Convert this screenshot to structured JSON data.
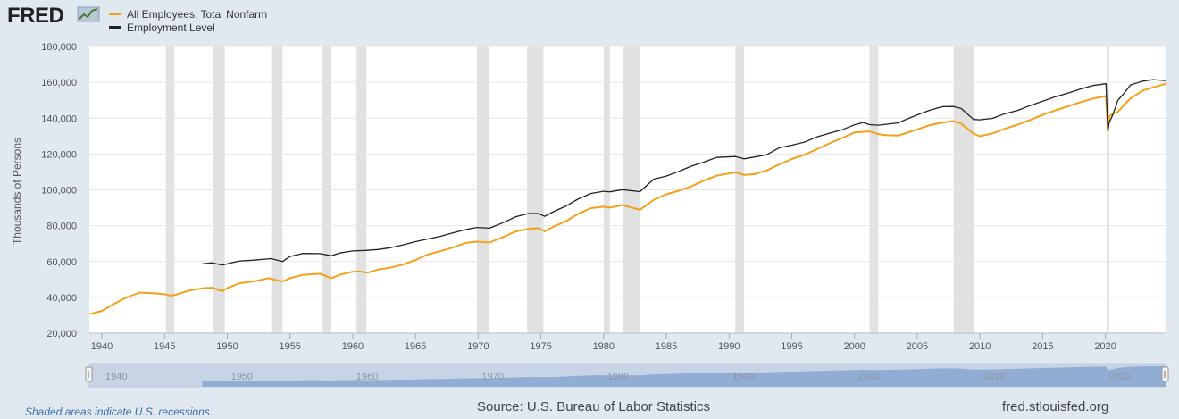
{
  "header": {
    "logo_text": "FRED",
    "legend": [
      {
        "label": "All Employees, Total Nonfarm",
        "color": "#f5a01a"
      },
      {
        "label": "Employment Level",
        "color": "#222222"
      }
    ]
  },
  "chart_data": {
    "type": "line",
    "title": "",
    "xlabel": "",
    "ylabel": "Thousands of Persons",
    "xlim": [
      1939,
      2024.8
    ],
    "ylim": [
      20000,
      180000
    ],
    "x_ticks": [
      "1940",
      "1945",
      "1950",
      "1955",
      "1960",
      "1965",
      "1970",
      "1975",
      "1980",
      "1985",
      "1990",
      "1995",
      "2000",
      "2005",
      "2010",
      "2015",
      "2020"
    ],
    "y_ticks": [
      "20,000",
      "40,000",
      "60,000",
      "80,000",
      "100,000",
      "120,000",
      "140,000",
      "160,000",
      "180,000"
    ],
    "grid": true,
    "legend_position": "top-left",
    "recessions": [
      [
        1945.1,
        1945.8
      ],
      [
        1948.9,
        1949.8
      ],
      [
        1953.5,
        1954.4
      ],
      [
        1957.6,
        1958.3
      ],
      [
        1960.3,
        1961.1
      ],
      [
        1969.9,
        1970.9
      ],
      [
        1973.9,
        1975.2
      ],
      [
        1980.0,
        1980.5
      ],
      [
        1981.5,
        1982.9
      ],
      [
        1990.5,
        1991.2
      ],
      [
        2001.2,
        2001.9
      ],
      [
        2007.9,
        2009.5
      ],
      [
        2020.1,
        2020.3
      ]
    ],
    "series": [
      {
        "name": "All Employees, Total Nonfarm",
        "color": "#f5a01a",
        "x": [
          1939.0,
          1940.0,
          1941.0,
          1942.0,
          1943.0,
          1944.0,
          1945.0,
          1945.5,
          1946.0,
          1947.0,
          1948.0,
          1948.8,
          1949.6,
          1950.0,
          1951.0,
          1952.0,
          1953.3,
          1954.4,
          1955.0,
          1956.0,
          1957.4,
          1958.3,
          1959.0,
          1960.0,
          1960.5,
          1961.2,
          1962.0,
          1963.0,
          1964.0,
          1965.0,
          1966.0,
          1967.0,
          1968.0,
          1969.0,
          1969.9,
          1970.9,
          1972.0,
          1973.0,
          1974.0,
          1974.8,
          1975.3,
          1976.0,
          1977.0,
          1978.0,
          1979.0,
          1980.0,
          1980.5,
          1981.5,
          1982.9,
          1984.0,
          1985.0,
          1986.0,
          1987.0,
          1988.0,
          1989.0,
          1990.5,
          1991.2,
          1992.0,
          1993.0,
          1994.0,
          1995.0,
          1996.0,
          1997.0,
          1998.0,
          1999.0,
          2000.0,
          2001.2,
          2001.9,
          2002.5,
          2003.5,
          2004.0,
          2005.0,
          2006.0,
          2007.0,
          2007.9,
          2008.5,
          2009.5,
          2010.0,
          2011.0,
          2012.0,
          2013.0,
          2014.0,
          2015.0,
          2016.0,
          2017.0,
          2018.0,
          2019.0,
          2020.05,
          2020.2,
          2020.3,
          2020.6,
          2021.0,
          2021.5,
          2022.0,
          2023.0,
          2024.8
        ],
        "y": [
          30600,
          32400,
          36500,
          40000,
          42700,
          42300,
          41800,
          40900,
          41700,
          43900,
          45000,
          45400,
          43400,
          45200,
          47900,
          48800,
          50700,
          48800,
          50700,
          52500,
          53200,
          50700,
          52700,
          54300,
          54500,
          53800,
          55500,
          56600,
          58300,
          60800,
          64000,
          65800,
          67900,
          70400,
          71100,
          70600,
          73700,
          76800,
          78200,
          78600,
          76800,
          79400,
          82500,
          86700,
          89800,
          90600,
          90100,
          91500,
          88900,
          94400,
          97500,
          99500,
          102000,
          105200,
          107900,
          109800,
          108300,
          108700,
          110800,
          114200,
          117200,
          119600,
          122700,
          125900,
          128900,
          132000,
          132600,
          131000,
          130500,
          130300,
          131400,
          133700,
          136100,
          137600,
          138400,
          137000,
          131300,
          129900,
          131500,
          134100,
          136400,
          139000,
          141800,
          144300,
          146600,
          148900,
          150900,
          152400,
          133000,
          141000,
          142500,
          143500,
          147500,
          151000,
          155500,
          159200
        ]
      },
      {
        "name": "Employment Level",
        "color": "#222222",
        "x": [
          1948.0,
          1948.8,
          1949.6,
          1950.3,
          1951.0,
          1952.0,
          1953.5,
          1954.4,
          1955.0,
          1956.0,
          1957.4,
          1958.3,
          1959.0,
          1960.0,
          1961.0,
          1962.0,
          1963.0,
          1964.0,
          1965.0,
          1966.0,
          1967.0,
          1968.0,
          1969.0,
          1969.9,
          1970.9,
          1972.0,
          1973.0,
          1974.0,
          1974.8,
          1975.3,
          1976.0,
          1977.0,
          1978.0,
          1979.0,
          1980.0,
          1980.5,
          1981.5,
          1982.9,
          1984.0,
          1985.0,
          1986.0,
          1987.0,
          1988.0,
          1989.0,
          1990.5,
          1991.2,
          1992.0,
          1993.0,
          1994.0,
          1995.0,
          1996.0,
          1997.0,
          1998.0,
          1999.0,
          2000.0,
          2000.7,
          2001.2,
          2001.9,
          2002.5,
          2003.5,
          2004.0,
          2005.0,
          2006.0,
          2007.0,
          2007.9,
          2008.5,
          2009.5,
          2010.0,
          2011.0,
          2012.0,
          2013.0,
          2014.0,
          2015.0,
          2016.0,
          2017.0,
          2018.0,
          2019.0,
          2020.05,
          2020.2,
          2020.3,
          2020.6,
          2021.0,
          2021.5,
          2022.0,
          2023.0,
          2023.8,
          2024.8
        ],
        "y": [
          58700,
          59300,
          58000,
          59300,
          60300,
          60700,
          61600,
          60000,
          62800,
          64500,
          64400,
          63200,
          64800,
          65900,
          66200,
          66700,
          67700,
          69300,
          71100,
          72600,
          74100,
          76000,
          77800,
          79000,
          78600,
          81700,
          85000,
          86800,
          86800,
          85200,
          87800,
          91000,
          95000,
          98000,
          99200,
          98900,
          100100,
          99000,
          106000,
          107700,
          110300,
          113200,
          115500,
          118100,
          118600,
          117300,
          118300,
          119600,
          123500,
          124900,
          126600,
          129500,
          131600,
          133500,
          136300,
          137600,
          136400,
          136100,
          136600,
          137400,
          139000,
          141800,
          144400,
          146400,
          146500,
          145400,
          139300,
          139100,
          139900,
          142500,
          144300,
          147000,
          149500,
          151900,
          154000,
          156200,
          158200,
          159200,
          133000,
          137500,
          142000,
          150000,
          154000,
          158500,
          160700,
          161500,
          161000
        ]
      }
    ]
  },
  "footer": {
    "note": "Shaded areas indicate U.S. recessions.",
    "source": "Source: U.S. Bureau of Labor Statistics",
    "url": "fred.stlouisfed.org"
  },
  "navigator": {
    "x_ticks": [
      "1940",
      "1950",
      "1960",
      "1970",
      "1980",
      "1990",
      "2000",
      "2010",
      "2020"
    ]
  },
  "colors": {
    "background": "#e1e9f0",
    "plot_background": "#ffffff",
    "recession_shade": "#e1e1e1",
    "navigator_fill": "#6c8fc4",
    "navigator_window": "#b3c6e0"
  }
}
